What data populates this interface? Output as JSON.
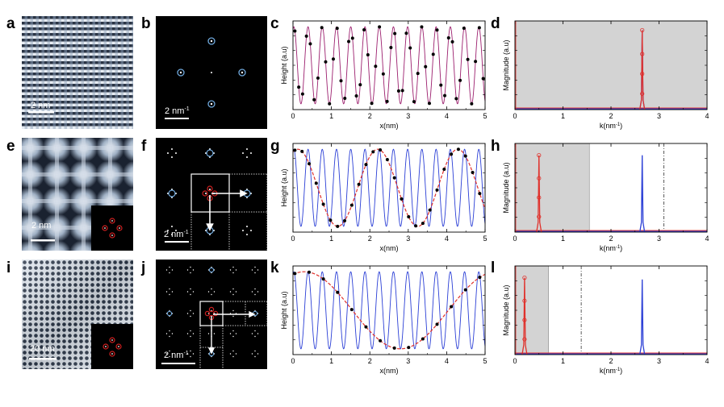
{
  "letters": [
    "a",
    "b",
    "c",
    "d",
    "e",
    "f",
    "g",
    "h",
    "i",
    "j",
    "k",
    "l"
  ],
  "scale_labels": {
    "a": "2 nm",
    "b": "2 nm",
    "b_sup": "-1",
    "e": "2 nm",
    "f": "2 nm",
    "f_sup": "-1",
    "i": "20 nm",
    "j": "2 nm",
    "j_sup": "-1"
  },
  "colors": {
    "fit_magenta": "#9c1f6e",
    "signal_blue": "#2b3fd6",
    "envelope_red": "#e0302b",
    "shade_gray": "#d3d3d3",
    "fft_blue": "#6fa8dc",
    "fft_red": "#d02020",
    "points": "#000000"
  },
  "chart_data": [
    {
      "id": "c",
      "type": "line",
      "xlabel": "x(nm)",
      "ylabel": "Height (a.u)",
      "xlim": [
        0,
        5
      ],
      "xticks": [
        0,
        1,
        2,
        3,
        4,
        5
      ],
      "series": [
        {
          "style": "line",
          "color": "#9c1f6e",
          "frequency": 2.7,
          "amplitude": 1
        },
        {
          "style": "points",
          "color": "#000000",
          "frequency": 2.7,
          "spacing": 0.1
        }
      ]
    },
    {
      "id": "d",
      "type": "line",
      "xlabel": "k(nm",
      "xlabel_sup": "-1",
      "xlabel_close": ")",
      "ylabel": "Magnitude (a.u)",
      "xlim": [
        0,
        4
      ],
      "xticks": [
        0,
        1,
        2,
        3,
        4
      ],
      "shade": [
        0,
        4
      ],
      "peaks": [
        {
          "color": "#2b3fd6",
          "x": 2.65,
          "height": 0.93
        },
        {
          "color": "#e0302b",
          "x": 2.65,
          "height": 0.93,
          "markers": true
        }
      ]
    },
    {
      "id": "g",
      "type": "line",
      "xlabel": "x(nm)",
      "ylabel": "Height (a.u)",
      "xlim": [
        0,
        5
      ],
      "xticks": [
        0,
        1,
        2,
        3,
        4,
        5
      ],
      "series": [
        {
          "style": "line",
          "color": "#2b3fd6",
          "frequency": 2.7,
          "amplitude": 1
        },
        {
          "style": "dashed",
          "color": "#e0302b",
          "frequency": 0.48,
          "amplitude": 1
        },
        {
          "style": "points",
          "color": "#000000",
          "frequency": 0.48,
          "spacing": 0.185
        }
      ]
    },
    {
      "id": "h",
      "type": "line",
      "xlabel": "k(nm",
      "xlabel_sup": "-1",
      "xlabel_close": ")",
      "ylabel": "Magnitude (a.u)",
      "xlim": [
        0,
        4
      ],
      "xticks": [
        0,
        1,
        2,
        3,
        4
      ],
      "shade": [
        0,
        1.55
      ],
      "vline": 3.1,
      "peaks": [
        {
          "color": "#e0302b",
          "x": 0.5,
          "height": 0.9,
          "markers": true
        },
        {
          "color": "#2b3fd6",
          "x": 2.65,
          "height": 0.9
        }
      ]
    },
    {
      "id": "k",
      "type": "line",
      "xlabel": "x(nm)",
      "ylabel": "Height (a.u)",
      "xlim": [
        0,
        5
      ],
      "xticks": [
        0,
        1,
        2,
        3,
        4,
        5
      ],
      "series": [
        {
          "style": "line",
          "color": "#2b3fd6",
          "frequency": 2.7,
          "amplitude": 1
        },
        {
          "style": "dashed",
          "color": "#e0302b",
          "frequency": 0.2,
          "amplitude": 1
        },
        {
          "style": "points",
          "color": "#000000",
          "frequency": 0.2,
          "spacing": 0.37
        }
      ]
    },
    {
      "id": "l",
      "type": "line",
      "xlabel": "k(nm",
      "xlabel_sup": "-1",
      "xlabel_close": ")",
      "ylabel": "Magnitude (a.u)",
      "xlim": [
        0,
        4
      ],
      "xticks": [
        0,
        1,
        2,
        3,
        4
      ],
      "shade": [
        0,
        0.7
      ],
      "vline": 1.38,
      "peaks": [
        {
          "color": "#e0302b",
          "x": 0.2,
          "height": 0.9,
          "markers": true
        },
        {
          "color": "#2b3fd6",
          "x": 2.65,
          "height": 0.88
        }
      ]
    }
  ]
}
